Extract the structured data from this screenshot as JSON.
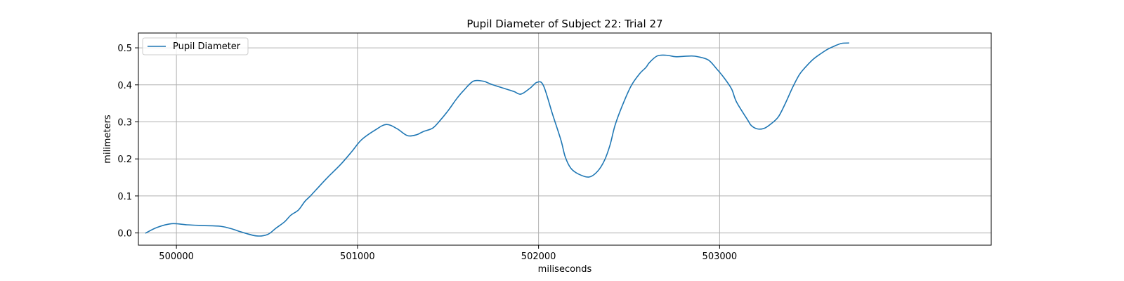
{
  "chart_data": {
    "type": "line",
    "title": "Pupil Diameter of Subject 22: Trial 27",
    "xlabel": "miliseconds",
    "ylabel": "milimeters",
    "xlim": [
      499790,
      504500
    ],
    "ylim": [
      -0.033,
      0.54
    ],
    "xticks": [
      500000,
      501000,
      502000,
      503000
    ],
    "xtick_labels": [
      "500000",
      "501000",
      "502000",
      "503000"
    ],
    "yticks": [
      0.0,
      0.1,
      0.2,
      0.3,
      0.4,
      0.5
    ],
    "ytick_labels": [
      "0.0",
      "0.1",
      "0.2",
      "0.3",
      "0.4",
      "0.5"
    ],
    "grid": true,
    "legend_position": "upper-left",
    "colors": {
      "series": "#1f77b4",
      "grid": "#b0b0b0",
      "axis": "#000000"
    },
    "series": [
      {
        "name": "Pupil Diameter",
        "x": [
          499831,
          499893,
          499973,
          500058,
          500143,
          500244,
          500313,
          500356,
          500442,
          500504,
          500550,
          500597,
          500632,
          500674,
          500709,
          500740,
          500791,
          500837,
          500907,
          500969,
          501023,
          501101,
          501159,
          501217,
          501275,
          501325,
          501364,
          501415,
          501453,
          501500,
          501547,
          501585,
          501640,
          501694,
          501713,
          501748,
          501806,
          501864,
          501903,
          501953,
          501992,
          502027,
          502077,
          502124,
          502147,
          502178,
          502221,
          502279,
          502325,
          502364,
          502395,
          502422,
          502461,
          502511,
          502558,
          502593,
          502612,
          502655,
          502705,
          502756,
          502802,
          502845,
          502880,
          502938,
          502984,
          503023,
          503066,
          503093,
          503155,
          503175,
          503209,
          503248,
          503287,
          503325,
          503364,
          503403,
          503441,
          503480,
          503519,
          503558,
          503596,
          503635,
          503674,
          503712
        ],
        "y": [
          0.0,
          0.015,
          0.025,
          0.022,
          0.02,
          0.018,
          0.01,
          0.003,
          -0.008,
          -0.004,
          0.013,
          0.03,
          0.048,
          0.062,
          0.085,
          0.1,
          0.127,
          0.151,
          0.185,
          0.22,
          0.252,
          0.279,
          0.293,
          0.282,
          0.263,
          0.265,
          0.274,
          0.283,
          0.302,
          0.33,
          0.362,
          0.384,
          0.41,
          0.41,
          0.407,
          0.4,
          0.391,
          0.382,
          0.375,
          0.391,
          0.407,
          0.398,
          0.321,
          0.25,
          0.206,
          0.175,
          0.159,
          0.151,
          0.166,
          0.196,
          0.238,
          0.29,
          0.342,
          0.397,
          0.43,
          0.447,
          0.46,
          0.478,
          0.48,
          0.476,
          0.477,
          0.478,
          0.476,
          0.467,
          0.443,
          0.42,
          0.389,
          0.354,
          0.305,
          0.29,
          0.281,
          0.283,
          0.296,
          0.314,
          0.351,
          0.393,
          0.428,
          0.451,
          0.47,
          0.484,
          0.496,
          0.505,
          0.512,
          0.513
        ]
      }
    ]
  }
}
